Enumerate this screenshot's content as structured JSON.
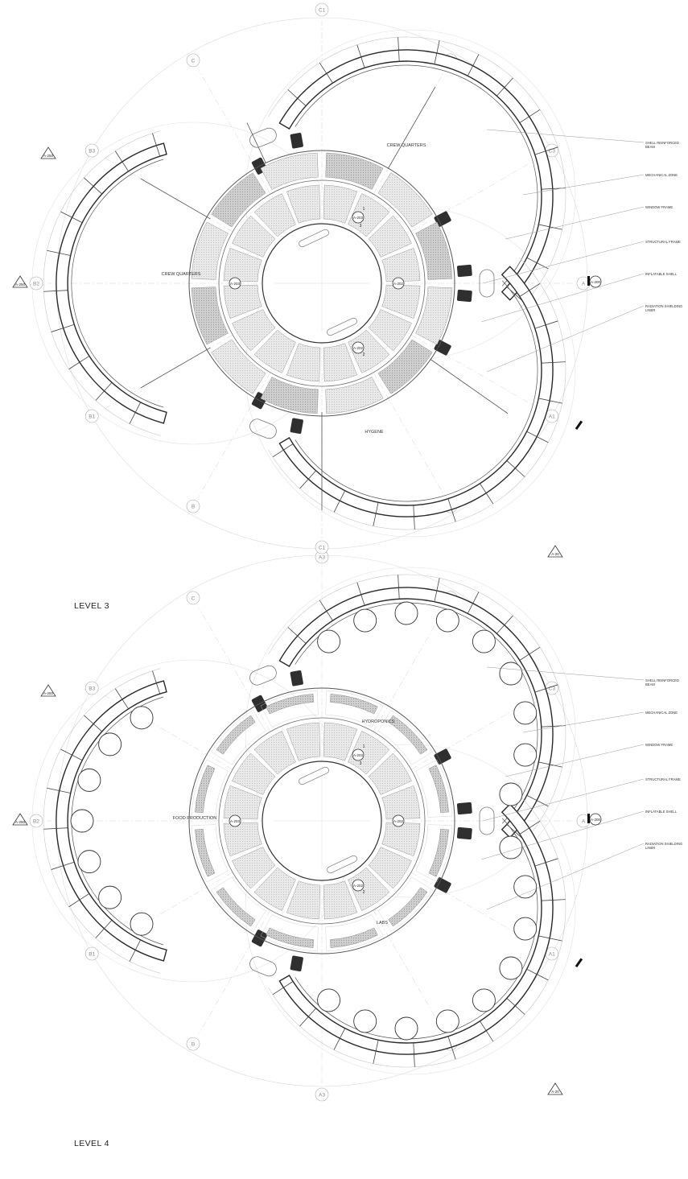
{
  "levels": [
    {
      "title": "LEVEL 3",
      "grid_labels": [
        "C1",
        "C",
        "C2",
        "B3",
        "C3",
        "B2",
        "A",
        "B1",
        "A1",
        "B",
        "A2",
        "A3"
      ],
      "section_tags": {
        "left": "A-250",
        "right": "A-200",
        "bottom": "A-20"
      },
      "callout_tags": [
        "A-203",
        "A-203",
        "A-202",
        "A-202"
      ],
      "callout_numbers": [
        "1",
        "2",
        "3"
      ],
      "rooms": [
        "CREW QUARTERS",
        "CREW QUARTERS",
        "HYGENE"
      ],
      "annotations": [
        "SHELL REINFORCED BEAM",
        "MECHANICAL ZONE",
        "WINDOW FRAME",
        "STRUCTURAL FRAME",
        "INFLATABLE SHELL",
        "RADIATION SHIELDING LINER"
      ]
    },
    {
      "title": "LEVEL 4",
      "grid_labels": [
        "C1",
        "C",
        "C2",
        "B3",
        "C3",
        "B2",
        "A",
        "B1",
        "A1",
        "B",
        "A2",
        "A3"
      ],
      "section_tags": {
        "left": "A-250",
        "right": "A-200",
        "bottom": "A-20"
      },
      "callout_tags": [
        "A-203",
        "A-203",
        "A-202",
        "A-202"
      ],
      "callout_numbers": [
        "1",
        "2",
        "3"
      ],
      "rooms": [
        "HYDROPONICS",
        "FOOD PRODUCTION",
        "LABS"
      ],
      "annotations": [
        "SHELL REINFORCED BEAM",
        "MECHANICAL ZONE",
        "WINDOW FRAME",
        "STRUCTURAL FRAME",
        "INFLATABLE SHELL",
        "RADIATION SHIELDING LINER"
      ]
    }
  ]
}
